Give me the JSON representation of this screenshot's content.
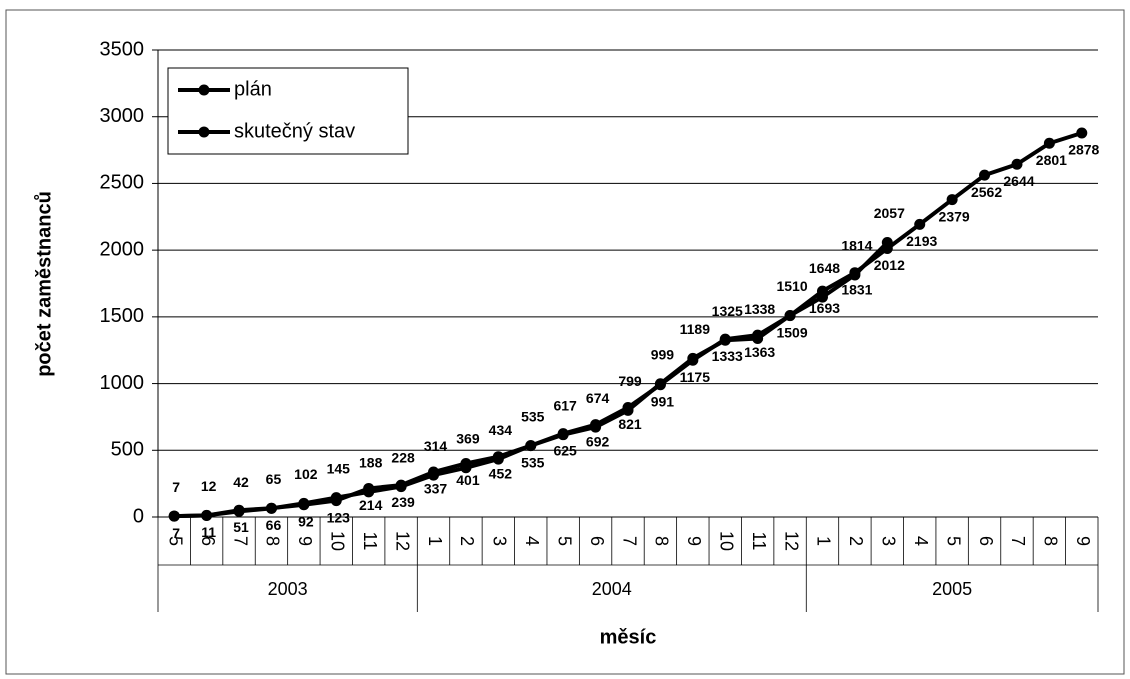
{
  "chart_data": {
    "type": "line",
    "ylabel": "počet zaměstnanců",
    "xlabel": "měsíc",
    "category_groups": [
      {
        "name": "2003",
        "categories": [
          "5",
          "6",
          "7",
          "8",
          "9",
          "10",
          "11",
          "12"
        ]
      },
      {
        "name": "2004",
        "categories": [
          "1",
          "2",
          "3",
          "4",
          "5",
          "6",
          "7",
          "8",
          "9",
          "10",
          "11",
          "12"
        ]
      },
      {
        "name": "2005",
        "categories": [
          "1",
          "2",
          "3",
          "4",
          "5",
          "6",
          "7",
          "8",
          "9"
        ]
      }
    ],
    "series": [
      {
        "name": "plán",
        "color": "#000000",
        "label_side": "below",
        "values": [
          7,
          11,
          51,
          66,
          92,
          123,
          214,
          239,
          337,
          401,
          452,
          535,
          625,
          692,
          821,
          991,
          1175,
          1333,
          1363,
          1509,
          1693,
          1831,
          2012,
          2193,
          2379,
          2562,
          2644,
          2801,
          2878
        ]
      },
      {
        "name": "skutečný stav",
        "color": "#000000",
        "label_side": "above",
        "values": [
          7,
          12,
          42,
          65,
          102,
          145,
          188,
          228,
          314,
          369,
          434,
          535,
          617,
          674,
          799,
          999,
          1189,
          1325,
          1338,
          1510,
          1648,
          1814,
          2057,
          null,
          null,
          null,
          null,
          null,
          null
        ]
      }
    ],
    "ylim": [
      0,
      3500
    ],
    "yticks": [
      0,
      500,
      1000,
      1500,
      2000,
      2500,
      3000,
      3500
    ],
    "grid": true,
    "legend": "upper-left"
  }
}
